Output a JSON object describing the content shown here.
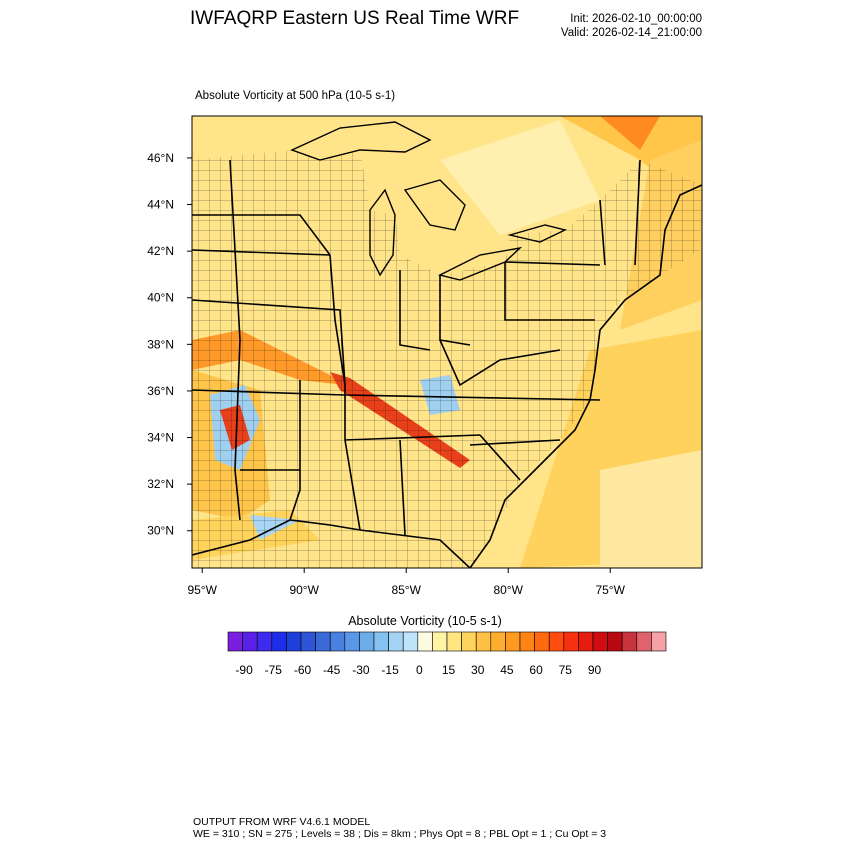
{
  "header": {
    "title": "IWFAQRP Eastern US Real Time WRF",
    "init": "Init: 2026-02-10_00:00:00",
    "valid": "Valid: 2026-02-14_21:00:00"
  },
  "map": {
    "field_label": "Absolute Vorticity at 500 hPa   (10-5 s-1)",
    "lat_labels": [
      "46°N",
      "44°N",
      "42°N",
      "40°N",
      "38°N",
      "36°N",
      "34°N",
      "32°N",
      "30°N"
    ],
    "lon_labels": [
      "95°W",
      "90°W",
      "85°W",
      "80°W",
      "75°W"
    ],
    "lat_range": [
      28.4,
      47.8
    ],
    "lon_range": [
      -95.5,
      -70.5
    ],
    "background_color": "#ffe48a",
    "boundary_color": "#000000"
  },
  "colorbar": {
    "title": "Absolute Vorticity  (10-5 s-1)",
    "tick_labels": [
      "-90",
      "-75",
      "-60",
      "-45",
      "-30",
      "-15",
      "0",
      "15",
      "30",
      "45",
      "60",
      "75",
      "90"
    ],
    "colors": [
      "#7a1fe0",
      "#5a20e8",
      "#3d2cf0",
      "#1e2de8",
      "#1f3fd8",
      "#2e55d6",
      "#3a6ad8",
      "#4a80e0",
      "#5a97e8",
      "#6badeb",
      "#86c2f0",
      "#a3d4f5",
      "#bfe3f8",
      "#fdfbe2",
      "#fff3a4",
      "#ffe680",
      "#ffd45c",
      "#ffc144",
      "#ffae30",
      "#ff9a20",
      "#ff8414",
      "#ff6a10",
      "#ff4d10",
      "#f73010",
      "#e51c10",
      "#d00c10",
      "#b80812",
      "#c8343e",
      "#e0636c",
      "#f6a0a8"
    ]
  },
  "footer": {
    "line1": "OUTPUT FROM WRF V4.6.1 MODEL",
    "line2": "WE = 310 ; SN = 275 ; Levels = 38 ; Dis = 8km ; Phys Opt = 8 ; PBL Opt = 1 ; Cu Opt = 3"
  }
}
